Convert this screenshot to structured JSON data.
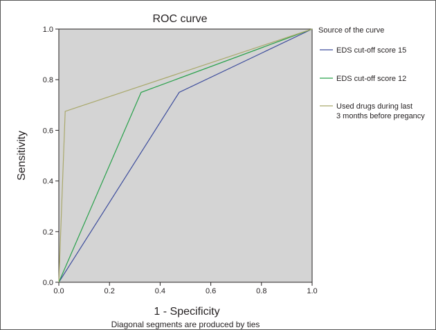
{
  "chart_data": {
    "type": "line",
    "title": "ROC curve",
    "xlabel": "1 - Specificity",
    "ylabel": "Sensitivity",
    "footnote": "Diagonal segments are produced by ties",
    "xlim": [
      0,
      1
    ],
    "ylim": [
      0,
      1
    ],
    "xticks": [
      "0.0",
      "0.2",
      "0.4",
      "0.6",
      "0.8",
      "1.0"
    ],
    "yticks": [
      "0.0",
      "0.2",
      "0.4",
      "0.6",
      "0.8",
      "1.0"
    ],
    "grid": false,
    "plot_background": "#d4d4d4",
    "legend": {
      "title": "Source of the curve",
      "placement": "right"
    },
    "series": [
      {
        "name": "EDS cut-off score 15",
        "color": "#3c4c9c",
        "points": [
          [
            0,
            0
          ],
          [
            0.475,
            0.75
          ],
          [
            1,
            1
          ]
        ]
      },
      {
        "name": "EDS cut-off score 12",
        "color": "#27a04a",
        "points": [
          [
            0,
            0
          ],
          [
            0.325,
            0.75
          ],
          [
            1,
            1
          ]
        ]
      },
      {
        "name": "Used drugs during last 3 months before pregancy",
        "name_lines": [
          "Used drugs during last",
          "3 months before pregancy"
        ],
        "color": "#a9a86a",
        "points": [
          [
            0,
            0
          ],
          [
            0.025,
            0.675
          ],
          [
            1,
            1
          ]
        ]
      }
    ]
  }
}
